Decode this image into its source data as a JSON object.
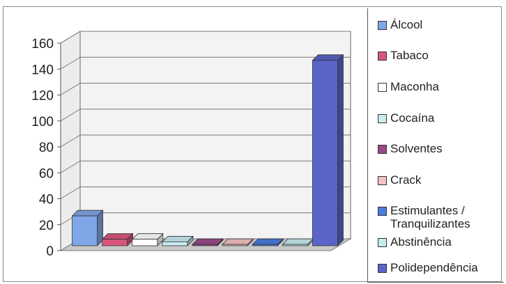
{
  "chart_data": {
    "type": "bar",
    "title": "",
    "xlabel": "",
    "ylabel": "",
    "ylim": [
      0,
      160
    ],
    "yticks": [
      "0",
      "20",
      "40",
      "60",
      "80",
      "100",
      "120",
      "140",
      "160"
    ],
    "grid": true,
    "legend_position": "right",
    "categories": [
      "Álcool",
      "Tabaco",
      "Maconha",
      "Cocaína",
      "Solventes",
      "Crack",
      "Estimulantes / Tranquilizantes",
      "Abstinência",
      "Polidependência"
    ],
    "values": [
      23,
      5,
      5,
      3,
      1,
      1,
      1,
      1,
      143
    ],
    "colors": [
      "#7fa6e6",
      "#d9557d",
      "#ffffff",
      "#c6ecf0",
      "#9a4a8a",
      "#f4c2c0",
      "#4a7be0",
      "#c6ecf0",
      "#5a64c8"
    ]
  }
}
